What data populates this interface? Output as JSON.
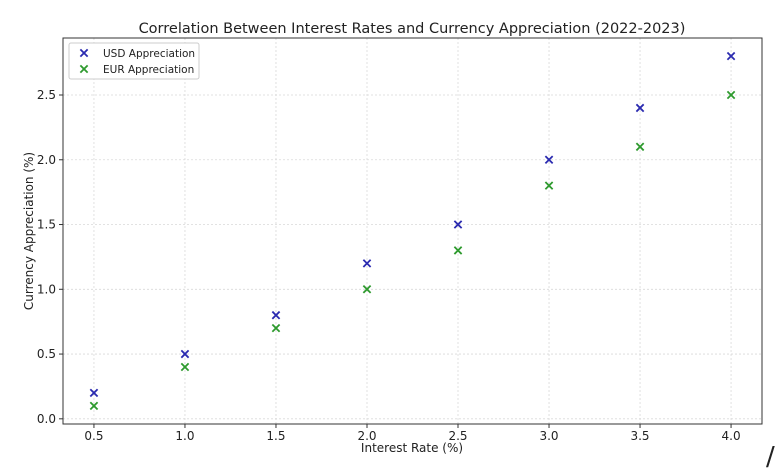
{
  "chart_data": {
    "type": "scatter",
    "title": "Correlation Between Interest Rates and Currency Appreciation (2022-2023)",
    "xlabel": "Interest Rate (%)",
    "ylabel": "Currency Appreciation (%)",
    "xlim": [
      0.33,
      4.17
    ],
    "ylim": [
      -0.04,
      2.94
    ],
    "xticks": [
      "0.5",
      "1.0",
      "1.5",
      "2.0",
      "2.5",
      "3.0",
      "3.5",
      "4.0"
    ],
    "yticks": [
      "0.0",
      "0.5",
      "1.0",
      "1.5",
      "2.0",
      "2.5"
    ],
    "xtick_values": [
      0.5,
      1.0,
      1.5,
      2.0,
      2.5,
      3.0,
      3.5,
      4.0
    ],
    "ytick_values": [
      0.0,
      0.5,
      1.0,
      1.5,
      2.0,
      2.5
    ],
    "grid": true,
    "legend_position": "top-left",
    "x": [
      0.5,
      1.0,
      1.5,
      2.0,
      2.5,
      3.0,
      3.5,
      4.0
    ],
    "series": [
      {
        "name": "USD Appreciation",
        "color": "#2b2bb0",
        "marker": "x",
        "values": [
          0.2,
          0.5,
          0.8,
          1.2,
          1.5,
          2.0,
          2.4,
          2.8
        ]
      },
      {
        "name": "EUR Appreciation",
        "color": "#2e9a2e",
        "marker": "x",
        "values": [
          0.1,
          0.4,
          0.7,
          1.0,
          1.3,
          1.8,
          2.1,
          2.5
        ]
      }
    ]
  },
  "edge_glyph": "/"
}
